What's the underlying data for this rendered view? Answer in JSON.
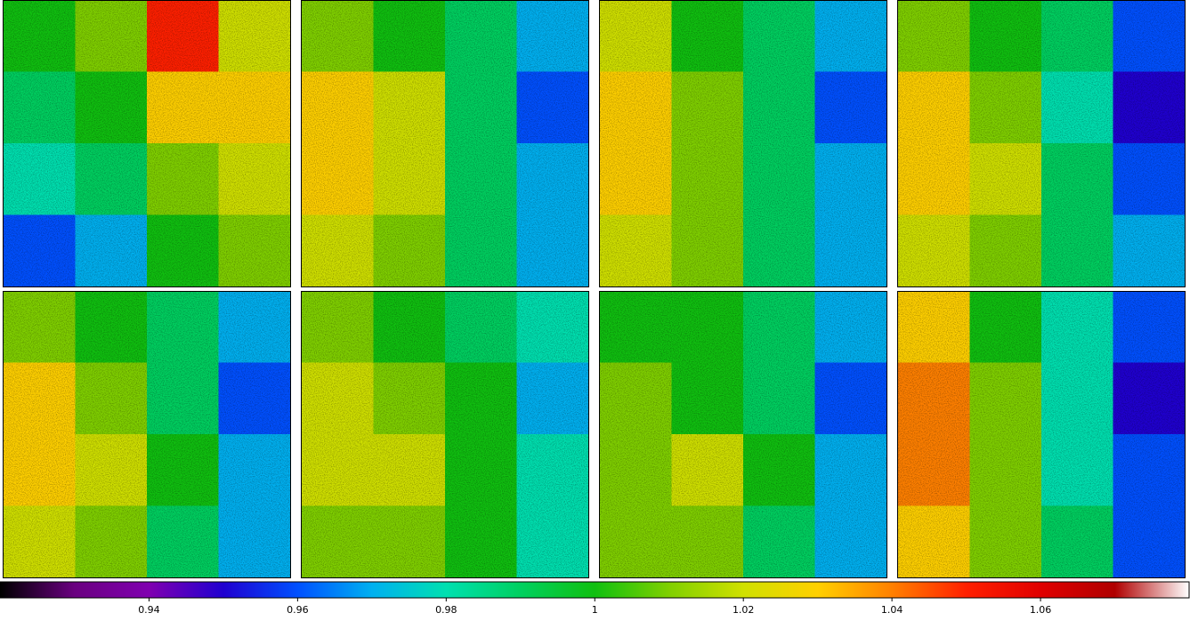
{
  "chart_data": {
    "type": "heatmap",
    "colormap": [
      "#000000",
      "#6a0080",
      "#8000b0",
      "#2000d0",
      "#0050ff",
      "#00b0f0",
      "#00e0b0",
      "#00d060",
      "#10c010",
      "#80d000",
      "#d0e000",
      "#ffd000",
      "#ff8000",
      "#ff2000",
      "#e00000",
      "#b00000",
      "#ffffff"
    ],
    "clim": [
      0.92,
      1.08
    ],
    "cticks": [
      0.94,
      0.96,
      0.98,
      1,
      1.02,
      1.04,
      1.06
    ],
    "panels": [
      {
        "values": [
          [
            1.0,
            1.01,
            1.05,
            1.02
          ],
          [
            0.99,
            1.0,
            1.03,
            1.03
          ],
          [
            0.98,
            0.99,
            1.01,
            1.02
          ],
          [
            0.96,
            0.97,
            1.0,
            1.01
          ]
        ]
      },
      {
        "values": [
          [
            1.01,
            1.0,
            0.99,
            0.97
          ],
          [
            1.03,
            1.02,
            0.99,
            0.96
          ],
          [
            1.03,
            1.02,
            0.99,
            0.97
          ],
          [
            1.02,
            1.01,
            0.99,
            0.97
          ]
        ]
      },
      {
        "values": [
          [
            1.02,
            1.0,
            0.99,
            0.97
          ],
          [
            1.03,
            1.01,
            0.99,
            0.96
          ],
          [
            1.03,
            1.01,
            0.99,
            0.97
          ],
          [
            1.02,
            1.01,
            0.99,
            0.97
          ]
        ]
      },
      {
        "values": [
          [
            1.01,
            1.0,
            0.99,
            0.96
          ],
          [
            1.03,
            1.01,
            0.98,
            0.95
          ],
          [
            1.03,
            1.02,
            0.99,
            0.96
          ],
          [
            1.02,
            1.01,
            0.99,
            0.97
          ]
        ]
      },
      {
        "values": [
          [
            1.01,
            1.0,
            0.99,
            0.97
          ],
          [
            1.03,
            1.01,
            0.99,
            0.96
          ],
          [
            1.03,
            1.02,
            1.0,
            0.97
          ],
          [
            1.02,
            1.01,
            0.99,
            0.97
          ]
        ]
      },
      {
        "values": [
          [
            1.01,
            1.0,
            0.99,
            0.98
          ],
          [
            1.02,
            1.01,
            1.0,
            0.97
          ],
          [
            1.02,
            1.02,
            1.0,
            0.98
          ],
          [
            1.01,
            1.01,
            1.0,
            0.98
          ]
        ]
      },
      {
        "values": [
          [
            1.0,
            1.0,
            0.99,
            0.97
          ],
          [
            1.01,
            1.0,
            0.99,
            0.96
          ],
          [
            1.01,
            1.02,
            1.0,
            0.97
          ],
          [
            1.01,
            1.01,
            0.99,
            0.97
          ]
        ]
      },
      {
        "values": [
          [
            1.03,
            1.0,
            0.98,
            0.96
          ],
          [
            1.04,
            1.01,
            0.98,
            0.95
          ],
          [
            1.04,
            1.01,
            0.98,
            0.96
          ],
          [
            1.03,
            1.01,
            0.99,
            0.96
          ]
        ]
      }
    ]
  }
}
